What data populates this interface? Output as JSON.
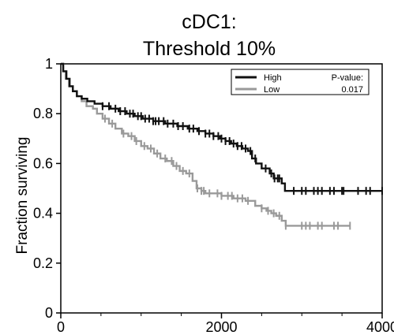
{
  "chart_data": {
    "type": "line",
    "subtype": "kaplan-meier",
    "title": [
      "cDC1:",
      "Threshold 10%"
    ],
    "xlabel": "",
    "ylabel": "Fraction surviving",
    "xlim": [
      0,
      4000
    ],
    "ylim": [
      0,
      1
    ],
    "x_ticks": [
      0,
      2000,
      4000
    ],
    "y_ticks": [
      0,
      0.2,
      0.4,
      0.6,
      0.8,
      1
    ],
    "x_tick_labels": [
      "0",
      "2000",
      "4000"
    ],
    "y_tick_labels": [
      "0",
      "0.2",
      "0.4",
      "0.6",
      "0.8",
      "1"
    ],
    "grid": false,
    "legend": {
      "placement": "top-right",
      "pvalue_label": "P-value:",
      "pvalue": "0.017"
    },
    "series": [
      {
        "name": "High",
        "color": "#111111",
        "steps": [
          [
            0,
            1.0
          ],
          [
            30,
            0.97
          ],
          [
            70,
            0.94
          ],
          [
            110,
            0.91
          ],
          [
            150,
            0.89
          ],
          [
            200,
            0.87
          ],
          [
            260,
            0.86
          ],
          [
            330,
            0.85
          ],
          [
            420,
            0.84
          ],
          [
            520,
            0.83
          ],
          [
            620,
            0.82
          ],
          [
            720,
            0.81
          ],
          [
            820,
            0.8
          ],
          [
            920,
            0.79
          ],
          [
            1020,
            0.78
          ],
          [
            1150,
            0.77
          ],
          [
            1300,
            0.76
          ],
          [
            1450,
            0.75
          ],
          [
            1580,
            0.74
          ],
          [
            1700,
            0.73
          ],
          [
            1800,
            0.72
          ],
          [
            1900,
            0.71
          ],
          [
            1980,
            0.7
          ],
          [
            2050,
            0.69
          ],
          [
            2120,
            0.68
          ],
          [
            2190,
            0.67
          ],
          [
            2260,
            0.66
          ],
          [
            2330,
            0.65
          ],
          [
            2380,
            0.62
          ],
          [
            2430,
            0.6
          ],
          [
            2500,
            0.58
          ],
          [
            2600,
            0.56
          ],
          [
            2650,
            0.54
          ],
          [
            2750,
            0.52
          ],
          [
            2790,
            0.49
          ],
          [
            4000,
            0.49
          ]
        ],
        "censor_x": [
          520,
          600,
          680,
          740,
          800,
          860,
          900,
          960,
          1000,
          1050,
          1100,
          1150,
          1180,
          1220,
          1280,
          1330,
          1400,
          1460,
          1520,
          1600,
          1650,
          1720,
          1800,
          1850,
          1900,
          1960,
          2000,
          2050,
          2100,
          2150,
          2200,
          2250,
          2300,
          2360,
          2420,
          2550,
          2620,
          2660,
          2700,
          2720,
          2900,
          3000,
          3050,
          3150,
          3200,
          3250,
          3350,
          3400,
          3500,
          3520,
          3700,
          3800,
          3850,
          4000
        ]
      },
      {
        "name": "Low",
        "color": "#9a9a9a",
        "steps": [
          [
            0,
            1.0
          ],
          [
            30,
            0.97
          ],
          [
            60,
            0.94
          ],
          [
            100,
            0.91
          ],
          [
            150,
            0.89
          ],
          [
            200,
            0.87
          ],
          [
            260,
            0.85
          ],
          [
            320,
            0.83
          ],
          [
            400,
            0.82
          ],
          [
            450,
            0.8
          ],
          [
            520,
            0.78
          ],
          [
            600,
            0.76
          ],
          [
            680,
            0.74
          ],
          [
            760,
            0.72
          ],
          [
            840,
            0.71
          ],
          [
            920,
            0.69
          ],
          [
            1000,
            0.67
          ],
          [
            1080,
            0.66
          ],
          [
            1160,
            0.64
          ],
          [
            1240,
            0.62
          ],
          [
            1320,
            0.61
          ],
          [
            1400,
            0.59
          ],
          [
            1480,
            0.57
          ],
          [
            1560,
            0.56
          ],
          [
            1640,
            0.53
          ],
          [
            1690,
            0.5
          ],
          [
            1750,
            0.49
          ],
          [
            1800,
            0.48
          ],
          [
            2000,
            0.47
          ],
          [
            2150,
            0.46
          ],
          [
            2300,
            0.45
          ],
          [
            2420,
            0.43
          ],
          [
            2500,
            0.42
          ],
          [
            2560,
            0.41
          ],
          [
            2620,
            0.4
          ],
          [
            2680,
            0.39
          ],
          [
            2750,
            0.37
          ],
          [
            2800,
            0.35
          ],
          [
            3600,
            0.35
          ]
        ],
        "censor_x": [
          550,
          640,
          780,
          880,
          940,
          1040,
          1120,
          1200,
          1300,
          1380,
          1440,
          1520,
          1600,
          1700,
          1750,
          1780,
          1850,
          1950,
          2000,
          2080,
          2130,
          2200,
          2260,
          2330,
          2500,
          2580,
          2650,
          2720,
          2800,
          3000,
          3050,
          3100,
          3200,
          3250,
          3400,
          3450,
          3600
        ]
      }
    ]
  }
}
